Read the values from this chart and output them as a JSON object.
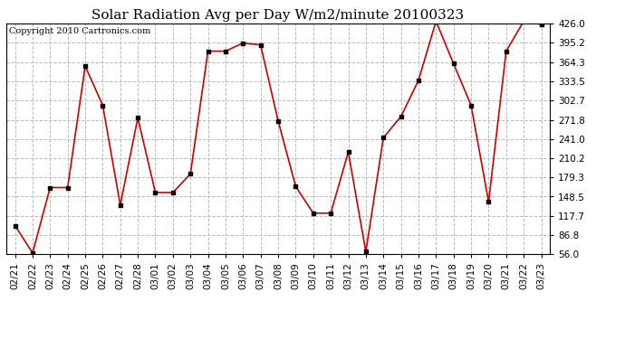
{
  "title": "Solar Radiation Avg per Day W/m2/minute 20100323",
  "copyright": "Copyright 2010 Cartronics.com",
  "dates": [
    "02/21",
    "02/22",
    "02/23",
    "02/24",
    "02/25",
    "02/26",
    "02/27",
    "02/28",
    "03/01",
    "03/02",
    "03/03",
    "03/04",
    "03/05",
    "03/06",
    "03/07",
    "03/08",
    "03/09",
    "03/10",
    "03/11",
    "03/12",
    "03/13",
    "03/14",
    "03/15",
    "03/16",
    "03/17",
    "03/18",
    "03/19",
    "03/20",
    "03/21",
    "03/22",
    "03/23"
  ],
  "values": [
    102,
    58,
    163,
    163,
    358,
    295,
    135,
    275,
    155,
    155,
    185,
    382,
    382,
    395,
    392,
    270,
    165,
    122,
    122,
    220,
    60,
    243,
    277,
    335,
    430,
    362,
    295,
    140,
    382,
    430,
    425
  ],
  "line_color": "#cc0000",
  "marker_color": "#000000",
  "bg_color": "#ffffff",
  "grid_color": "#bbbbbb",
  "yticks": [
    56.0,
    86.8,
    117.7,
    148.5,
    179.3,
    210.2,
    241.0,
    271.8,
    302.7,
    333.5,
    364.3,
    395.2,
    426.0
  ],
  "ylim": [
    56.0,
    426.0
  ],
  "title_fontsize": 11,
  "copyright_fontsize": 7,
  "tick_fontsize": 7.5
}
